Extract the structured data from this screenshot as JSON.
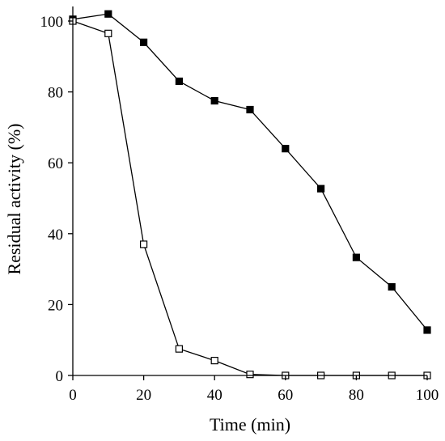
{
  "chart_data": {
    "type": "line",
    "title": "",
    "xlabel": "Time (min)",
    "ylabel": "Residual activity (%)",
    "xlim": [
      0,
      100
    ],
    "ylim": [
      0,
      105
    ],
    "xticks": [
      0,
      20,
      40,
      60,
      80,
      100
    ],
    "yticks": [
      0,
      20,
      40,
      60,
      80,
      100
    ],
    "grid": false,
    "legend": "none",
    "series": [
      {
        "marker": "filled-square",
        "color": "#000000",
        "x": [
          0,
          10,
          20,
          30,
          40,
          50,
          60,
          70,
          80,
          90,
          100
        ],
        "y": [
          100.5,
          102,
          94,
          83,
          77.5,
          75,
          64,
          52.7,
          33.3,
          25,
          12.8
        ]
      },
      {
        "marker": "open-square",
        "color": "#000000",
        "x": [
          0,
          10,
          20,
          30,
          40,
          50,
          60,
          70,
          80,
          90,
          100
        ],
        "y": [
          100,
          96.5,
          37,
          7.5,
          4.2,
          0.3,
          0,
          0,
          0,
          0,
          0
        ]
      }
    ]
  }
}
